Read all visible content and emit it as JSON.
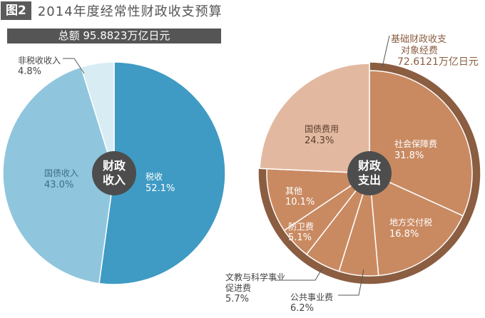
{
  "header": {
    "figure_label": "图2",
    "title": "2014年度经常性财政收支预算"
  },
  "total": "总额 95.8823万亿日元",
  "colors": {
    "tax": "#3f9bc4",
    "bond_income": "#8fc6dd",
    "non_tax": "#d8ecf3",
    "expense_dark": "#8b5d41",
    "expense_mid": "#c98a62",
    "expense_light": "#e2b9a0",
    "center_label_bg": "#4d4d4d"
  },
  "chart_data": [
    {
      "type": "pie",
      "title": "财政收入",
      "center_label": [
        "财政",
        "收入"
      ],
      "slices": [
        {
          "name": "税收",
          "value": 52.1,
          "label": "52.1%"
        },
        {
          "name": "国债收入",
          "value": 43.0,
          "label": "43.0%"
        },
        {
          "name": "非税收收入",
          "value": 4.8,
          "label": "4.8%"
        }
      ]
    },
    {
      "type": "pie",
      "title": "财政支出",
      "center_label": [
        "财政",
        "支出"
      ],
      "outer_ring": {
        "lines": [
          "基础财政收支",
          "对象经费",
          "72.6121万亿日元"
        ]
      },
      "slices": [
        {
          "name": "社会保障费",
          "value": 31.8,
          "label": "31.8%"
        },
        {
          "name": "地方交付税",
          "value": 16.8,
          "label": "16.8%"
        },
        {
          "name": "公共事业费",
          "value": 6.2,
          "label": "6.2%"
        },
        {
          "name": "文教与科学事业促进费",
          "name_lines": [
            "文教与科学事业",
            "促进费"
          ],
          "value": 5.7,
          "label": "5.7%"
        },
        {
          "name": "防卫费",
          "value": 5.1,
          "label": "5.1%"
        },
        {
          "name": "其他",
          "value": 10.1,
          "label": "10.1%"
        },
        {
          "name": "国债费用",
          "value": 24.3,
          "label": "24.3%"
        }
      ]
    }
  ]
}
